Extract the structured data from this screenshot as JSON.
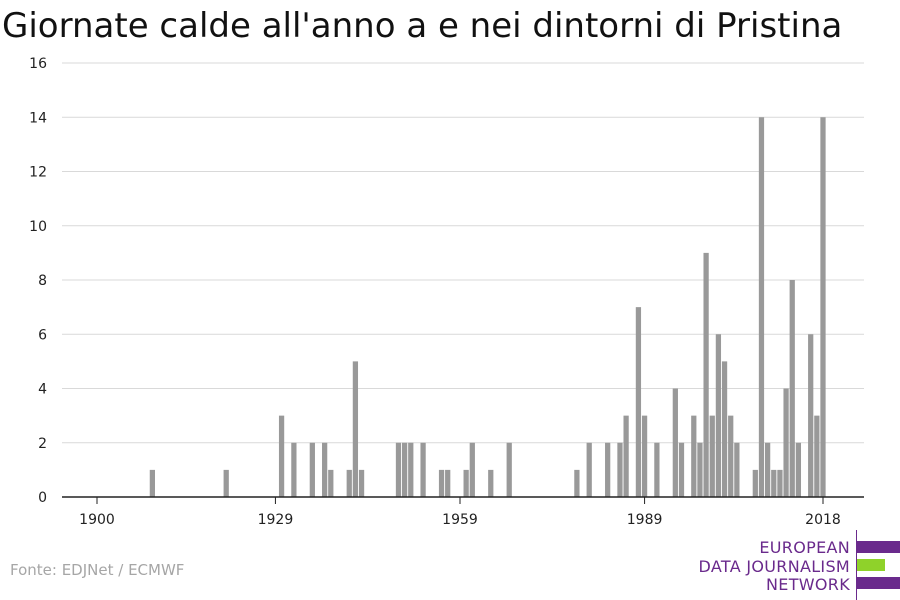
{
  "title": "Giornate calde all'anno a e nei dintorni di Pristina",
  "source": "Fonte: EDJNet / ECMWF",
  "logo": {
    "line1": "EUROPEAN",
    "line2": "DATA JOURNALISM",
    "line3": "NETWORK",
    "colors": {
      "text": "#6a2a8c",
      "bar_purple": "#6a2a8c",
      "bar_green": "#8fd22a"
    }
  },
  "chart_data": {
    "type": "bar",
    "title": "Giornate calde all'anno a e nei dintorni di Pristina",
    "xlabel": "",
    "ylabel": "",
    "ylim": [
      0,
      16
    ],
    "xlim": [
      1900,
      2018
    ],
    "yticks": [
      "0",
      "2",
      "4",
      "6",
      "8",
      "10",
      "12",
      "14",
      "16"
    ],
    "xticks": [
      "1900",
      "1929",
      "1959",
      "1989",
      "2018"
    ],
    "grid": true,
    "bar_color": "#999999",
    "x": [
      1900,
      1901,
      1902,
      1903,
      1904,
      1905,
      1906,
      1907,
      1908,
      1909,
      1910,
      1911,
      1912,
      1913,
      1914,
      1915,
      1916,
      1917,
      1918,
      1919,
      1920,
      1921,
      1922,
      1923,
      1924,
      1925,
      1926,
      1927,
      1928,
      1929,
      1930,
      1931,
      1932,
      1933,
      1934,
      1935,
      1936,
      1937,
      1938,
      1939,
      1940,
      1941,
      1942,
      1943,
      1944,
      1945,
      1946,
      1947,
      1948,
      1949,
      1950,
      1951,
      1952,
      1953,
      1954,
      1955,
      1956,
      1957,
      1958,
      1959,
      1960,
      1961,
      1962,
      1963,
      1964,
      1965,
      1966,
      1967,
      1968,
      1969,
      1970,
      1971,
      1972,
      1973,
      1974,
      1975,
      1976,
      1977,
      1978,
      1979,
      1980,
      1981,
      1982,
      1983,
      1984,
      1985,
      1986,
      1987,
      1988,
      1989,
      1990,
      1991,
      1992,
      1993,
      1994,
      1995,
      1996,
      1997,
      1998,
      1999,
      2000,
      2001,
      2002,
      2003,
      2004,
      2005,
      2006,
      2007,
      2008,
      2009,
      2010,
      2011,
      2012,
      2013,
      2014,
      2015,
      2016,
      2017,
      2018
    ],
    "values": [
      0,
      0,
      0,
      0,
      0,
      0,
      0,
      0,
      0,
      1,
      0,
      0,
      0,
      0,
      0,
      0,
      0,
      0,
      0,
      0,
      0,
      1,
      0,
      0,
      0,
      0,
      0,
      0,
      0,
      0,
      3,
      0,
      2,
      0,
      0,
      2,
      0,
      2,
      1,
      0,
      0,
      1,
      5,
      1,
      0,
      0,
      0,
      0,
      0,
      2,
      2,
      2,
      0,
      2,
      0,
      0,
      1,
      1,
      0,
      0,
      1,
      2,
      0,
      0,
      1,
      0,
      0,
      2,
      0,
      0,
      0,
      0,
      0,
      0,
      0,
      0,
      0,
      0,
      1,
      0,
      2,
      0,
      0,
      2,
      0,
      2,
      3,
      0,
      7,
      3,
      0,
      2,
      0,
      0,
      4,
      2,
      0,
      3,
      2,
      9,
      3,
      6,
      5,
      3,
      2,
      0,
      0,
      1,
      14,
      2,
      1,
      1,
      4,
      8,
      2,
      0,
      6,
      3,
      14
    ]
  }
}
